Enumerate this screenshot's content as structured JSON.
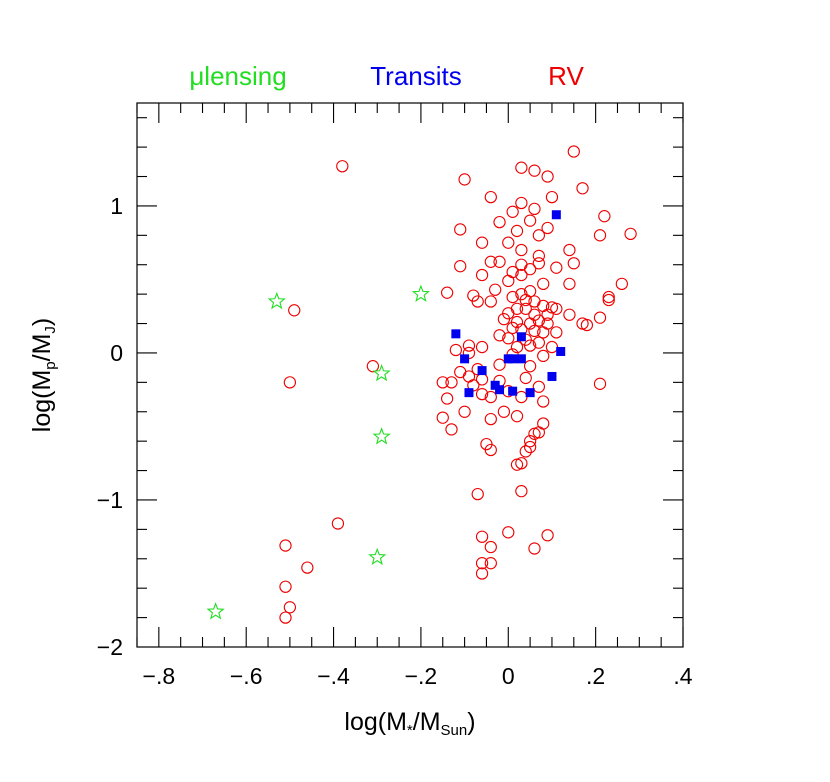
{
  "chart_data": {
    "type": "scatter",
    "xlabel": {
      "base": "log(M",
      "sub1": "*",
      "mid": "/M",
      "sub2": "Sun",
      "end": ")"
    },
    "ylabel": {
      "base": "log(M",
      "sub1": "p",
      "mid": "/M",
      "sub2": "J",
      "end": ")"
    },
    "xlim": [
      -0.85,
      0.4
    ],
    "ylim": [
      -2.0,
      1.7
    ],
    "xticks": [
      {
        "value": -0.8,
        "label": "−.8"
      },
      {
        "value": -0.6,
        "label": "−.6"
      },
      {
        "value": -0.4,
        "label": "−.4"
      },
      {
        "value": -0.2,
        "label": "−.2"
      },
      {
        "value": 0.0,
        "label": "0"
      },
      {
        "value": 0.2,
        "label": ".2"
      },
      {
        "value": 0.4,
        "label": ".4"
      }
    ],
    "yticks": [
      {
        "value": -2,
        "label": "−2"
      },
      {
        "value": -1,
        "label": "−1"
      },
      {
        "value": 0,
        "label": "0"
      },
      {
        "value": 1,
        "label": "1"
      }
    ],
    "grid": false,
    "legend_position": "top",
    "series": [
      {
        "name": "μlensing",
        "marker": "star",
        "color": "#22dd22",
        "points": [
          [
            -0.67,
            -1.76
          ],
          [
            -0.53,
            0.35
          ],
          [
            -0.2,
            0.4
          ],
          [
            -0.29,
            -0.14
          ],
          [
            -0.29,
            -0.57
          ],
          [
            -0.3,
            -1.39
          ]
        ]
      },
      {
        "name": "Transits",
        "marker": "filled-square",
        "color": "#0000ee",
        "points": [
          [
            0.11,
            0.94
          ],
          [
            -0.12,
            0.13
          ],
          [
            0.03,
            0.11
          ],
          [
            0.12,
            0.01
          ],
          [
            -0.1,
            -0.04
          ],
          [
            0.0,
            -0.04
          ],
          [
            0.01,
            -0.04
          ],
          [
            0.03,
            -0.04
          ],
          [
            -0.06,
            -0.12
          ],
          [
            0.1,
            -0.16
          ],
          [
            -0.03,
            -0.22
          ],
          [
            -0.09,
            -0.27
          ],
          [
            -0.02,
            -0.25
          ],
          [
            0.01,
            -0.26
          ],
          [
            0.05,
            -0.27
          ]
        ]
      },
      {
        "name": "RV",
        "marker": "open-circle",
        "color": "#ee0000",
        "points": [
          [
            -0.38,
            1.27
          ],
          [
            -0.49,
            0.29
          ],
          [
            -0.5,
            -0.2
          ],
          [
            -0.31,
            -0.09
          ],
          [
            -0.39,
            -1.16
          ],
          [
            -0.51,
            -1.31
          ],
          [
            -0.46,
            -1.46
          ],
          [
            -0.51,
            -1.59
          ],
          [
            -0.5,
            -1.73
          ],
          [
            -0.51,
            -1.8
          ],
          [
            0.15,
            1.37
          ],
          [
            0.03,
            1.26
          ],
          [
            -0.1,
            1.18
          ],
          [
            0.06,
            1.24
          ],
          [
            0.17,
            1.12
          ],
          [
            0.09,
            1.2
          ],
          [
            -0.04,
            1.06
          ],
          [
            0.03,
            1.02
          ],
          [
            0.01,
            0.96
          ],
          [
            0.06,
            0.98
          ],
          [
            0.1,
            1.06
          ],
          [
            0.22,
            0.93
          ],
          [
            -0.02,
            0.89
          ],
          [
            0.05,
            0.9
          ],
          [
            0.09,
            0.85
          ],
          [
            0.02,
            0.83
          ],
          [
            -0.11,
            0.84
          ],
          [
            0.07,
            0.8
          ],
          [
            0.21,
            0.8
          ],
          [
            0.28,
            0.81
          ],
          [
            -0.06,
            0.75
          ],
          [
            0.0,
            0.75
          ],
          [
            0.03,
            0.7
          ],
          [
            0.07,
            0.66
          ],
          [
            0.14,
            0.7
          ],
          [
            -0.02,
            0.62
          ],
          [
            0.03,
            0.6
          ],
          [
            0.07,
            0.61
          ],
          [
            0.11,
            0.58
          ],
          [
            0.15,
            0.61
          ],
          [
            -0.11,
            0.59
          ],
          [
            -0.04,
            0.62
          ],
          [
            0.01,
            0.55
          ],
          [
            0.03,
            0.53
          ],
          [
            0.05,
            0.57
          ],
          [
            0.0,
            0.49
          ],
          [
            -0.06,
            0.53
          ],
          [
            0.08,
            0.47
          ],
          [
            0.14,
            0.47
          ],
          [
            0.26,
            0.47
          ],
          [
            -0.03,
            0.43
          ],
          [
            0.03,
            0.4
          ],
          [
            0.05,
            0.42
          ],
          [
            -0.14,
            0.41
          ],
          [
            -0.08,
            0.39
          ],
          [
            0.01,
            0.38
          ],
          [
            0.23,
            0.38
          ],
          [
            0.23,
            0.36
          ],
          [
            0.04,
            0.36
          ],
          [
            -0.07,
            0.35
          ],
          [
            -0.04,
            0.35
          ],
          [
            0.06,
            0.35
          ],
          [
            0.08,
            0.32
          ],
          [
            0.1,
            0.31
          ],
          [
            0.02,
            0.3
          ],
          [
            0.04,
            0.3
          ],
          [
            0.11,
            0.3
          ],
          [
            0.0,
            0.27
          ],
          [
            0.06,
            0.26
          ],
          [
            0.09,
            0.26
          ],
          [
            0.14,
            0.26
          ],
          [
            0.21,
            0.24
          ],
          [
            -0.01,
            0.23
          ],
          [
            0.02,
            0.21
          ],
          [
            0.05,
            0.2
          ],
          [
            0.07,
            0.22
          ],
          [
            0.09,
            0.2
          ],
          [
            0.17,
            0.2
          ],
          [
            0.18,
            0.19
          ],
          [
            0.01,
            0.17
          ],
          [
            0.03,
            0.16
          ],
          [
            0.06,
            0.15
          ],
          [
            0.08,
            0.14
          ],
          [
            0.11,
            0.14
          ],
          [
            -0.02,
            0.12
          ],
          [
            0.0,
            0.1
          ],
          [
            0.04,
            0.09
          ],
          [
            0.07,
            0.07
          ],
          [
            -0.09,
            0.05
          ],
          [
            -0.06,
            0.04
          ],
          [
            0.02,
            0.04
          ],
          [
            0.05,
            0.05
          ],
          [
            0.1,
            0.04
          ],
          [
            -0.12,
            0.02
          ],
          [
            -0.09,
            0.0
          ],
          [
            0.01,
            -0.01
          ],
          [
            0.08,
            -0.02
          ],
          [
            -0.02,
            -0.08
          ],
          [
            0.05,
            -0.09
          ],
          [
            -0.07,
            -0.11
          ],
          [
            -0.11,
            -0.13
          ],
          [
            -0.09,
            -0.16
          ],
          [
            -0.06,
            -0.18
          ],
          [
            0.04,
            -0.17
          ],
          [
            -0.15,
            -0.2
          ],
          [
            -0.13,
            -0.2
          ],
          [
            -0.02,
            -0.19
          ],
          [
            -0.08,
            -0.22
          ],
          [
            0.0,
            -0.26
          ],
          [
            0.07,
            -0.23
          ],
          [
            -0.14,
            -0.31
          ],
          [
            -0.06,
            -0.28
          ],
          [
            -0.04,
            -0.3
          ],
          [
            0.03,
            -0.3
          ],
          [
            0.08,
            -0.33
          ],
          [
            -0.1,
            -0.4
          ],
          [
            -0.01,
            -0.4
          ],
          [
            -0.04,
            -0.45
          ],
          [
            0.02,
            -0.43
          ],
          [
            -0.15,
            -0.44
          ],
          [
            -0.13,
            -0.52
          ],
          [
            0.08,
            -0.48
          ],
          [
            0.07,
            -0.54
          ],
          [
            0.06,
            -0.55
          ],
          [
            0.05,
            -0.6
          ],
          [
            -0.05,
            -0.62
          ],
          [
            0.05,
            -0.64
          ],
          [
            -0.04,
            -0.66
          ],
          [
            0.04,
            -0.67
          ],
          [
            0.03,
            -0.75
          ],
          [
            0.02,
            -0.76
          ],
          [
            -0.07,
            -0.96
          ],
          [
            0.03,
            -0.94
          ],
          [
            0.0,
            -1.22
          ],
          [
            -0.06,
            -1.25
          ],
          [
            0.06,
            -1.33
          ],
          [
            -0.04,
            -1.32
          ],
          [
            -0.06,
            -1.43
          ],
          [
            -0.04,
            -1.43
          ],
          [
            -0.06,
            -1.5
          ],
          [
            0.09,
            -1.24
          ],
          [
            0.21,
            -0.21
          ]
        ]
      }
    ]
  }
}
